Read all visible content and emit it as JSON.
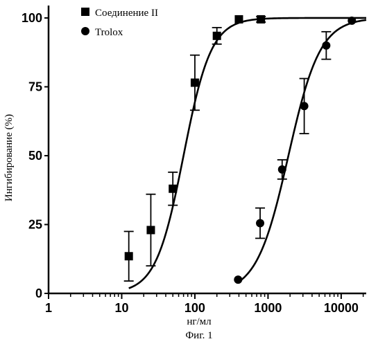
{
  "figure": {
    "caption": "Фиг. 1"
  },
  "chart_data": {
    "type": "scatter",
    "title": "",
    "xlabel": "нг/мл",
    "ylabel": "Ингибирование (%)",
    "xscale": "log",
    "xlim": [
      1,
      22000
    ],
    "ylim": [
      0,
      104
    ],
    "x_ticks": [
      1,
      10,
      100,
      1000,
      10000
    ],
    "x_tick_labels": [
      "1",
      "10",
      "100",
      "1000",
      "10000"
    ],
    "y_ticks": [
      0,
      25,
      50,
      75,
      100
    ],
    "y_tick_labels": [
      "0",
      "25",
      "50",
      "75",
      "100"
    ],
    "grid": false,
    "legend_position": "top-left",
    "series": [
      {
        "name": "Соединение II",
        "marker": "square",
        "color": "#000000",
        "points": [
          {
            "x": 12.5,
            "y": 13.5,
            "err": 9
          },
          {
            "x": 25,
            "y": 23,
            "err": 13
          },
          {
            "x": 50,
            "y": 38,
            "err": 6
          },
          {
            "x": 100,
            "y": 76.5,
            "err": 10
          },
          {
            "x": 200,
            "y": 93.5,
            "err": 3
          },
          {
            "x": 400,
            "y": 99.5,
            "err": 0
          },
          {
            "x": 800,
            "y": 99.5,
            "err": 1
          }
        ],
        "fit": {
          "bottom": 0,
          "top": 100,
          "ec50": 70,
          "hill": 2.3,
          "x_range": [
            12.5,
            22000
          ]
        }
      },
      {
        "name": "Trolox",
        "marker": "circle",
        "color": "#000000",
        "points": [
          {
            "x": 390,
            "y": 5,
            "err": 0
          },
          {
            "x": 780,
            "y": 25.5,
            "err": 5.5
          },
          {
            "x": 1560,
            "y": 45,
            "err": 3.5
          },
          {
            "x": 3125,
            "y": 68,
            "err": 10
          },
          {
            "x": 6250,
            "y": 90,
            "err": 5
          },
          {
            "x": 14000,
            "y": 99,
            "err": 0
          }
        ],
        "fit": {
          "bottom": 0,
          "top": 100,
          "ec50": 1900,
          "hill": 2.0,
          "x_range": [
            390,
            22000
          ]
        }
      }
    ]
  }
}
